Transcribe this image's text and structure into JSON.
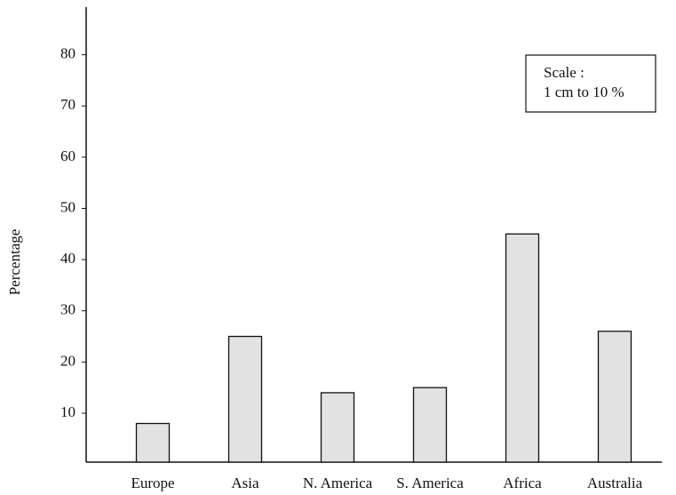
{
  "chart_data": {
    "type": "bar",
    "y_label": "Percentage",
    "categories": [
      "Europe",
      "Asia",
      "N. America",
      "S. America",
      "Africa",
      "Australia"
    ],
    "values": [
      8,
      25,
      14,
      15,
      45,
      26
    ],
    "color": "#e2e2e2",
    "ylim": [
      0,
      90
    ],
    "yticks": [
      10,
      20,
      30,
      40,
      50,
      60,
      70,
      80
    ],
    "grid": false,
    "annotations": [
      "Scale :",
      "1 cm to 10 %"
    ]
  }
}
